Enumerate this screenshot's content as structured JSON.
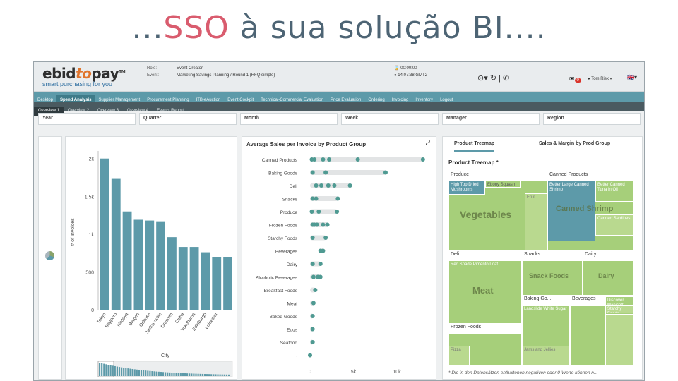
{
  "slide": {
    "headline_prefix": "...",
    "headline_accent": "SSO",
    "headline_rest": " à sua solução BI...."
  },
  "app": {
    "logo": {
      "name_a": "ebid",
      "name_to": "to",
      "name_b": "pay",
      "tm": "TM",
      "tagline": "smart purchasing for you"
    },
    "meta": {
      "role_key": "Role:",
      "role_value": "Event Creator",
      "event_key": "Event:",
      "event_value": "Marketing Savings Planning / Round 1 (RFQ simple)"
    },
    "timers": {
      "elapsed": "00:00:00",
      "clock": "14:07:38 GMT2"
    },
    "user": {
      "name": "Tom Risk",
      "mail_count": "0"
    },
    "colors": {
      "teal": "#5d9aa9",
      "dark_teal": "#4a5a60",
      "green": "#a6cf7a",
      "accent": "#d95c6e"
    }
  },
  "nav": {
    "tabs": [
      "Desktop",
      "Spend Analysis",
      "Supplier Management",
      "Procurement Planning",
      "ITB-eAuction",
      "Event Cockpit",
      "Technical-Commercial Evaluation",
      "Price Evaluation",
      "Ordering",
      "Invoicing",
      "Inventory",
      "Logout"
    ],
    "active_tab": "Spend Analysis",
    "subtabs": [
      "Overview 1",
      "Overview 2",
      "Overview 3",
      "Overview 4",
      "Events Report"
    ]
  },
  "filters": [
    "Year",
    "Quarter",
    "Month",
    "Week",
    "Manager",
    "Region"
  ],
  "chart_data": [
    {
      "type": "bar",
      "title": "",
      "xlabel": "City",
      "ylabel": "# of Invoices",
      "ylim": [
        0,
        2100
      ],
      "yticks": [
        "0",
        "500",
        "1k",
        "1.5k",
        "2k"
      ],
      "categories": [
        "Tokyo",
        "Sapporo",
        "Nagoya",
        "Bergen",
        "Odense",
        "Jacksonville",
        "Dresden",
        "Chiba",
        "Yokohama",
        "Edinburgh",
        "Leicester",
        ""
      ],
      "values": [
        2000,
        1740,
        1300,
        1190,
        1180,
        1170,
        960,
        830,
        830,
        760,
        700,
        700
      ]
    },
    {
      "type": "scatter",
      "title": "Average Sales per Invoice by Product Group",
      "xticks": [
        "0",
        "5k",
        "10k"
      ],
      "xlim": [
        0,
        13500
      ],
      "categories": [
        "Canned Products",
        "Baking Goods",
        "Deli",
        "Snacks",
        "Produce",
        "Frozen Foods",
        "Starchy Foods",
        "Beverages",
        "Dairy",
        "Alcoholic Beverages",
        "Breakfast Foods",
        "Meat",
        "Baked Goods",
        "Eggs",
        "Seafood",
        "-"
      ],
      "points": [
        [
          200,
          500,
          1500,
          2200,
          5500,
          13000
        ],
        [
          300,
          1800,
          8700
        ],
        [
          700,
          1300,
          2100,
          2800,
          4600
        ],
        [
          300,
          700,
          3200
        ],
        [
          200,
          1000,
          3100
        ],
        [
          300,
          500,
          800,
          1500,
          2000
        ],
        [
          300,
          1800
        ],
        [
          1200,
          1500
        ],
        [
          300,
          1200
        ],
        [
          400,
          900,
          1200
        ],
        [
          600
        ],
        [
          400
        ],
        [
          300
        ],
        [
          300
        ],
        [
          300
        ],
        [
          0
        ]
      ],
      "ranges": [
        [
          0,
          13200
        ],
        [
          0,
          8800
        ],
        [
          0,
          4700
        ],
        [
          0,
          3300
        ],
        [
          0,
          3200
        ],
        [
          0,
          2100
        ],
        [
          0,
          1900
        ],
        [
          1100,
          1600
        ],
        [
          0,
          1300
        ],
        [
          0,
          1300
        ],
        [
          0,
          700
        ],
        [
          0,
          500
        ],
        [
          0,
          400
        ],
        [
          0,
          400
        ],
        [
          0,
          400
        ],
        [
          0,
          0
        ]
      ]
    }
  ],
  "treemap": {
    "tabs": [
      "Product Treemap",
      "Sales & Margin by Prod Group"
    ],
    "title": "Product Treemap *",
    "groups": [
      {
        "name": "Produce",
        "items": [
          "High Top Dried Mushrooms",
          "Ebony Squash"
        ],
        "big": "Vegetables",
        "fruit": "Fruit"
      },
      {
        "name": "Canned Products",
        "items": [
          "Better Large Canned Shrimp",
          "Better Canned Tuna in Oil"
        ],
        "big": "Canned Shrimp",
        "small": "Canned Sardines"
      },
      {
        "name": "Deli",
        "items": [
          "Red Spade Pimento Loaf"
        ],
        "big": "Meat"
      },
      {
        "name": "Snacks",
        "big": "Snack Foods"
      },
      {
        "name": "Dairy",
        "big": "Dairy"
      },
      {
        "name": "Frozen Foods",
        "small": "Pizza"
      },
      {
        "name": "Baking Go...",
        "items": [
          "Landslide White Sugar"
        ],
        "small": "Jams and Jellies"
      },
      {
        "name": "Beverages"
      },
      {
        "name": "Discover Manicotti",
        "items": [
          "Starchy Foods"
        ]
      }
    ],
    "footnote": "* Die in den Datensätzen enthaltenen negativen oder 0-Werte können n..."
  }
}
